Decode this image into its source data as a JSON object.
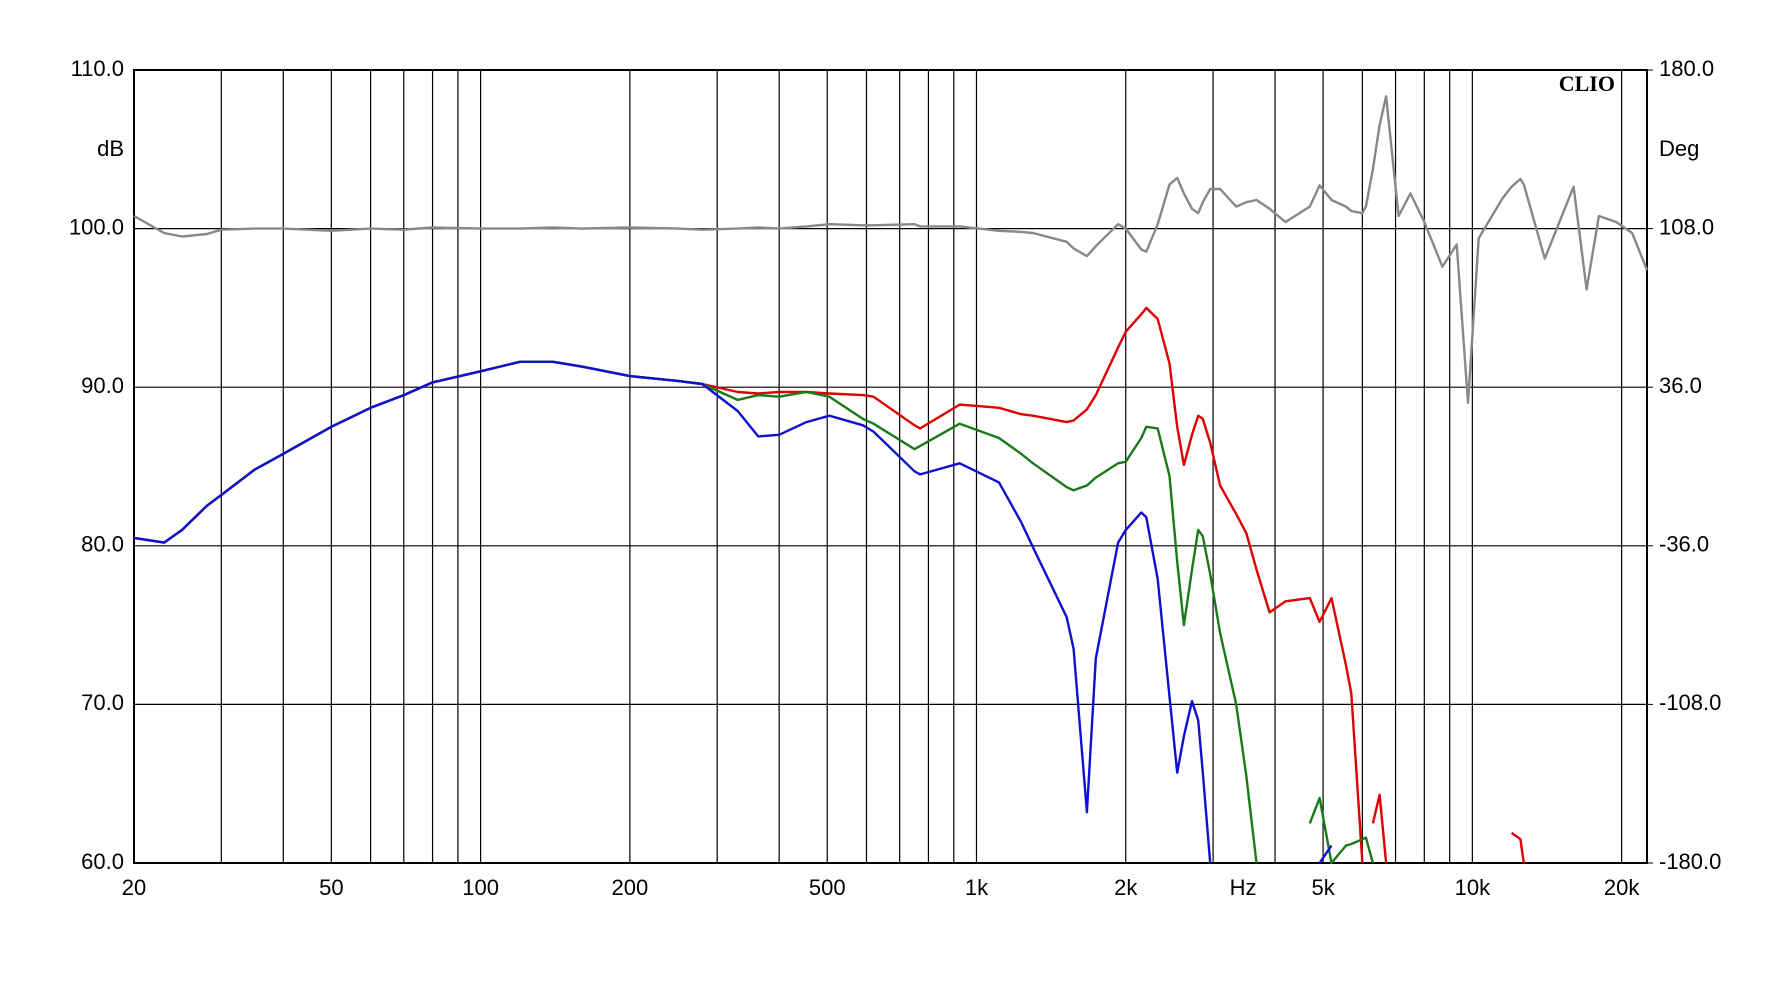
{
  "chart_data": {
    "type": "line",
    "xscale": "log",
    "grid": true,
    "brand": "CLIO",
    "xlabel": "Hz",
    "ylabel": "dB",
    "y2label": "Deg",
    "xlim": [
      20,
      22500
    ],
    "ylim": [
      60,
      110
    ],
    "y2lim": [
      -180,
      180
    ],
    "xticks": [
      20,
      50,
      100,
      200,
      500,
      {
        "value": 1000,
        "label": "1k"
      },
      {
        "value": 2000,
        "label": "2k"
      },
      {
        "value": 5000,
        "label": "5k"
      },
      {
        "value": 10000,
        "label": "10k"
      },
      {
        "value": 20000,
        "label": "20k"
      }
    ],
    "xgrid": [
      30,
      40,
      60,
      70,
      80,
      90,
      300,
      400,
      600,
      700,
      800,
      900,
      3000,
      4000,
      6000,
      7000,
      8000,
      9000
    ],
    "yticks": [
      {
        "value": 60,
        "label": "60.0"
      },
      {
        "value": 70,
        "label": "70.0"
      },
      {
        "value": 80,
        "label": "80.0"
      },
      {
        "value": 90,
        "label": "90.0"
      },
      {
        "value": 100,
        "label": "100.0"
      },
      {
        "value": 110,
        "label": "110.0"
      }
    ],
    "y2ticks": [
      {
        "value": -180,
        "label": "-180.0"
      },
      {
        "value": -108,
        "label": "-108.0"
      },
      {
        "value": -36,
        "label": "-36.0"
      },
      {
        "value": 36,
        "label": "36.0"
      },
      {
        "value": 108,
        "label": "108.0"
      },
      {
        "value": 180,
        "label": "180.0"
      }
    ],
    "x": [
      20,
      23,
      25,
      28,
      30,
      35,
      40,
      50,
      60,
      70,
      80,
      100,
      120,
      140,
      160,
      200,
      250,
      280,
      330,
      363,
      400,
      454,
      505,
      590,
      620,
      750,
      770,
      925,
      1110,
      1230,
      1300,
      1520,
      1570,
      1670,
      1740,
      1930,
      2000,
      2150,
      2200,
      2320,
      2450,
      2540,
      2620,
      2720,
      2800,
      2860,
      2960,
      3100,
      3340,
      3500,
      3670,
      3900,
      4200,
      4700,
      4920,
      5200,
      5560,
      5700,
      6000,
      6100,
      6300,
      6500,
      6700,
      7100,
      7500,
      8000,
      8700,
      9300,
      9800,
      10300,
      11500,
      12000,
      12500,
      12700,
      14000,
      16000,
      17000,
      18000,
      19500,
      21000,
      22500
    ],
    "series": [
      {
        "color": "#888888",
        "axis": "y2",
        "values": [
          113.7,
          106,
          104.4,
          105.5,
          107.5,
          108,
          108,
          107,
          108,
          107.5,
          108.5,
          108,
          108,
          108.5,
          108,
          108.5,
          108,
          107.5,
          108,
          108.5,
          108,
          109,
          110,
          109.5,
          109.5,
          110,
          109,
          109,
          107,
          106.5,
          106,
          102,
          99,
          95.5,
          100,
          110,
          108,
          98.5,
          97.5,
          110,
          128,
          131,
          124,
          117,
          115,
          120,
          126,
          126,
          118,
          120,
          121,
          117,
          111,
          118,
          127.6,
          121,
          118,
          116,
          115,
          118,
          135,
          155,
          168,
          113.7,
          124,
          111,
          90.7,
          100.8,
          28.9,
          103.6,
          121.7,
          127,
          130.5,
          128,
          94.4,
          127,
          80.4,
          113.7,
          111,
          106,
          89.2
        ]
      },
      {
        "color": "#e00000",
        "values": [
          80.5,
          80.2,
          81,
          82.5,
          83.2,
          84.8,
          85.8,
          87.5,
          88.7,
          89.5,
          90.3,
          91.0,
          91.6,
          91.6,
          91.3,
          90.7,
          90.4,
          90.2,
          89.7,
          89.6,
          89.7,
          89.7,
          89.6,
          89.5,
          89.4,
          87.6,
          87.4,
          88.9,
          88.7,
          88.3,
          88.2,
          87.8,
          87.9,
          88.6,
          89.5,
          92.5,
          93.5,
          94.6,
          95.0,
          94.3,
          91.5,
          87.5,
          85.1,
          87.0,
          88.2,
          88.0,
          86.5,
          83.8,
          82.0,
          80.8,
          78.5,
          75.8,
          76.5,
          76.7,
          75.2,
          76.7,
          72.5,
          70.7,
          60,
          null,
          62.5,
          64.3,
          60,
          null,
          null,
          null,
          null,
          null,
          null,
          null,
          null,
          61.9,
          61.5,
          60,
          null,
          null,
          null,
          null,
          null,
          null,
          null
        ]
      },
      {
        "color": "#1a7a1a",
        "values": [
          80.5,
          80.2,
          81,
          82.5,
          83.2,
          84.8,
          85.8,
          87.5,
          88.7,
          89.5,
          90.3,
          91.0,
          91.6,
          91.6,
          91.3,
          90.7,
          90.4,
          90.2,
          89.2,
          89.5,
          89.4,
          89.7,
          89.4,
          88.0,
          87.7,
          86.1,
          86.3,
          87.7,
          86.8,
          85.8,
          85.2,
          83.7,
          83.5,
          83.8,
          84.3,
          85.2,
          85.3,
          86.8,
          87.5,
          87.4,
          84.4,
          79.0,
          75.0,
          78.5,
          81.0,
          80.6,
          78.2,
          74.5,
          70.0,
          65.5,
          60,
          null,
          null,
          62.5,
          64.1,
          60,
          61.1,
          61.2,
          61.5,
          61.6,
          60,
          null,
          null,
          null,
          null,
          null,
          null,
          null,
          null,
          null,
          null,
          null,
          null,
          null,
          null,
          null,
          null,
          null,
          null,
          null,
          null
        ]
      },
      {
        "color": "#1010d0",
        "values": [
          80.5,
          80.2,
          81,
          82.5,
          83.2,
          84.8,
          85.8,
          87.5,
          88.7,
          89.5,
          90.3,
          91.0,
          91.6,
          91.6,
          91.3,
          90.7,
          90.4,
          90.2,
          88.5,
          86.9,
          87.0,
          87.8,
          88.2,
          87.6,
          87.2,
          84.7,
          84.5,
          85.2,
          84.0,
          81.5,
          79.9,
          75.5,
          73.5,
          63.2,
          72.9,
          80.2,
          81.0,
          82.1,
          81.8,
          77.9,
          70.5,
          65.7,
          68.0,
          70.2,
          69.0,
          65.7,
          60,
          null,
          null,
          null,
          null,
          null,
          null,
          null,
          60,
          61.1,
          null,
          null,
          null,
          null,
          null,
          null,
          null,
          null,
          null,
          null,
          null,
          null,
          null,
          null,
          null,
          null,
          null,
          null,
          null,
          null,
          null,
          null,
          null,
          null,
          null
        ]
      }
    ]
  }
}
